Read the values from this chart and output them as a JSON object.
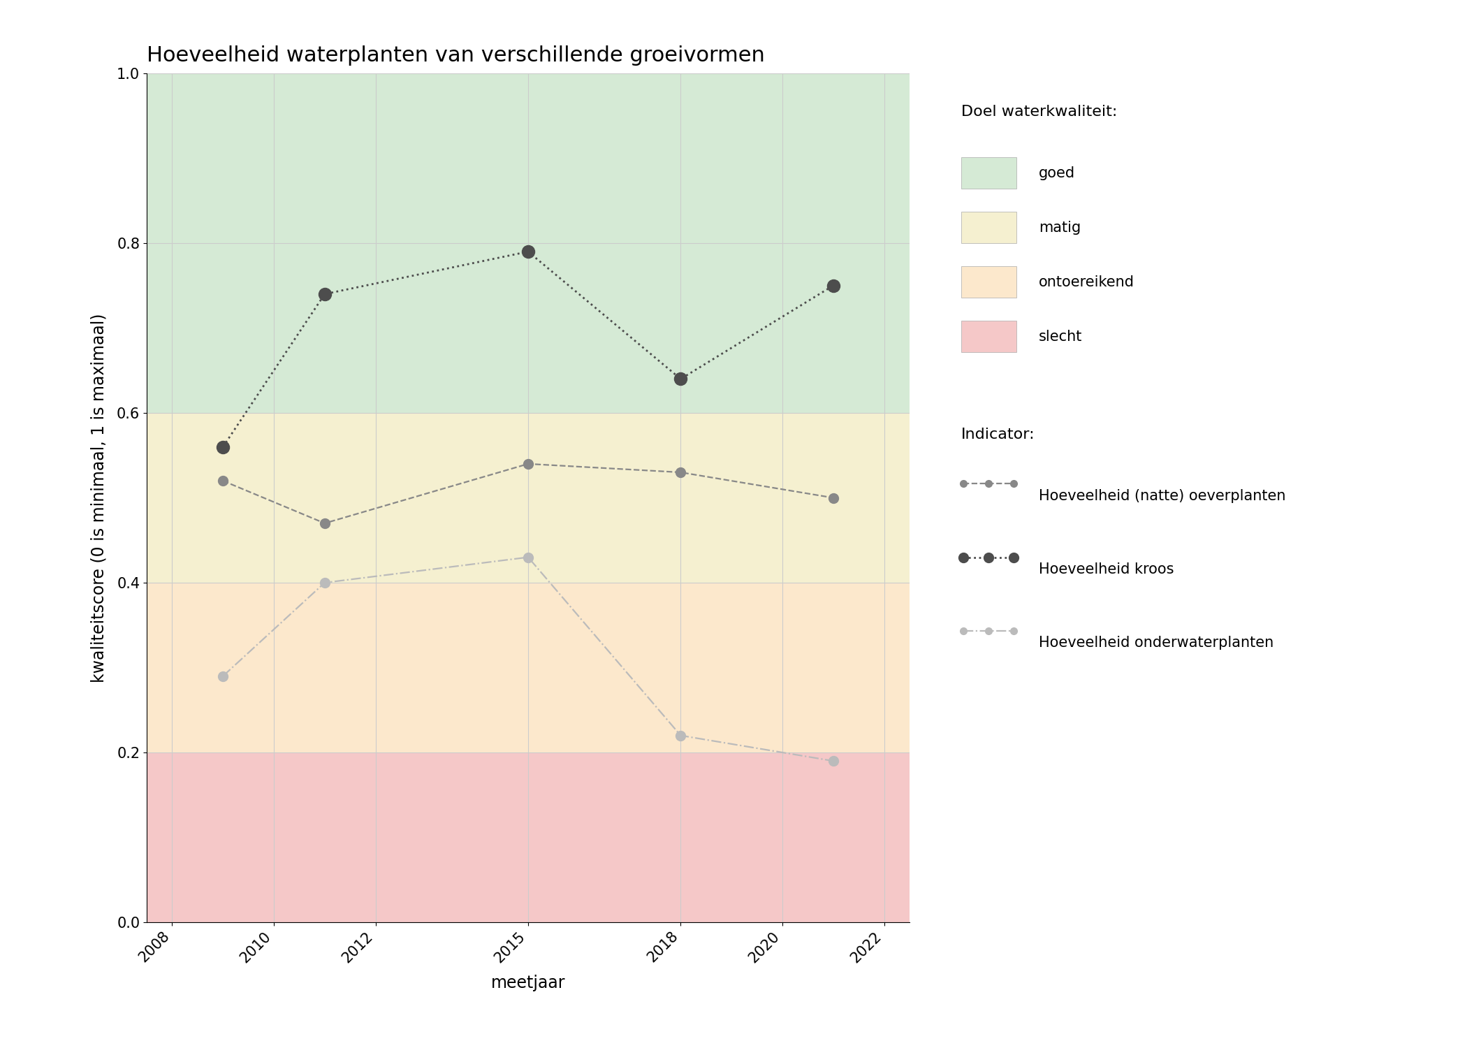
{
  "title": "Hoeveelheid waterplanten van verschillende groeivormen",
  "xlabel": "meetjaar",
  "ylabel": "kwaliteitscore (0 is minimaal, 1 is maximaal)",
  "xlim": [
    2007.5,
    2022.5
  ],
  "ylim": [
    0.0,
    1.0
  ],
  "xticks": [
    2008,
    2010,
    2012,
    2015,
    2018,
    2020,
    2022
  ],
  "yticks": [
    0.0,
    0.2,
    0.4,
    0.6,
    0.8,
    1.0
  ],
  "bg_zones": [
    {
      "name": "goed",
      "ymin": 0.6,
      "ymax": 1.0,
      "color": "#d5ead5"
    },
    {
      "name": "matig",
      "ymin": 0.4,
      "ymax": 0.6,
      "color": "#f5f0d0"
    },
    {
      "name": "ontoereikend",
      "ymin": 0.2,
      "ymax": 0.4,
      "color": "#fce8cc"
    },
    {
      "name": "slecht",
      "ymin": 0.0,
      "ymax": 0.2,
      "color": "#f5c8c8"
    }
  ],
  "series": [
    {
      "key": "oeverplanten",
      "label": "Hoeveelheid (natte) oeverplanten",
      "years": [
        2009,
        2011,
        2015,
        2018,
        2021
      ],
      "values": [
        0.52,
        0.47,
        0.54,
        0.53,
        0.5
      ],
      "color": "#888888",
      "linestyle": "--",
      "markersize": 10,
      "linewidth": 1.6
    },
    {
      "key": "kroos",
      "label": "Hoeveelheid kroos",
      "years": [
        2009,
        2011,
        2015,
        2018,
        2021
      ],
      "values": [
        0.56,
        0.74,
        0.79,
        0.64,
        0.75
      ],
      "color": "#4d4d4d",
      "linestyle": ":",
      "markersize": 13,
      "linewidth": 2.0
    },
    {
      "key": "onderwaterplanten",
      "label": "Hoeveelheid onderwaterplanten",
      "years": [
        2009,
        2011,
        2015,
        2018,
        2021
      ],
      "values": [
        0.29,
        0.4,
        0.43,
        0.22,
        0.19
      ],
      "color": "#bbbbbb",
      "linestyle": "-.",
      "markersize": 10,
      "linewidth": 1.6
    }
  ],
  "legend_quality_title": "Doel waterkwaliteit:",
  "legend_indicator_title": "Indicator:",
  "grid_color": "#cccccc",
  "title_fontsize": 22,
  "label_fontsize": 17,
  "tick_fontsize": 15,
  "legend_fontsize": 15,
  "legend_title_fontsize": 16
}
